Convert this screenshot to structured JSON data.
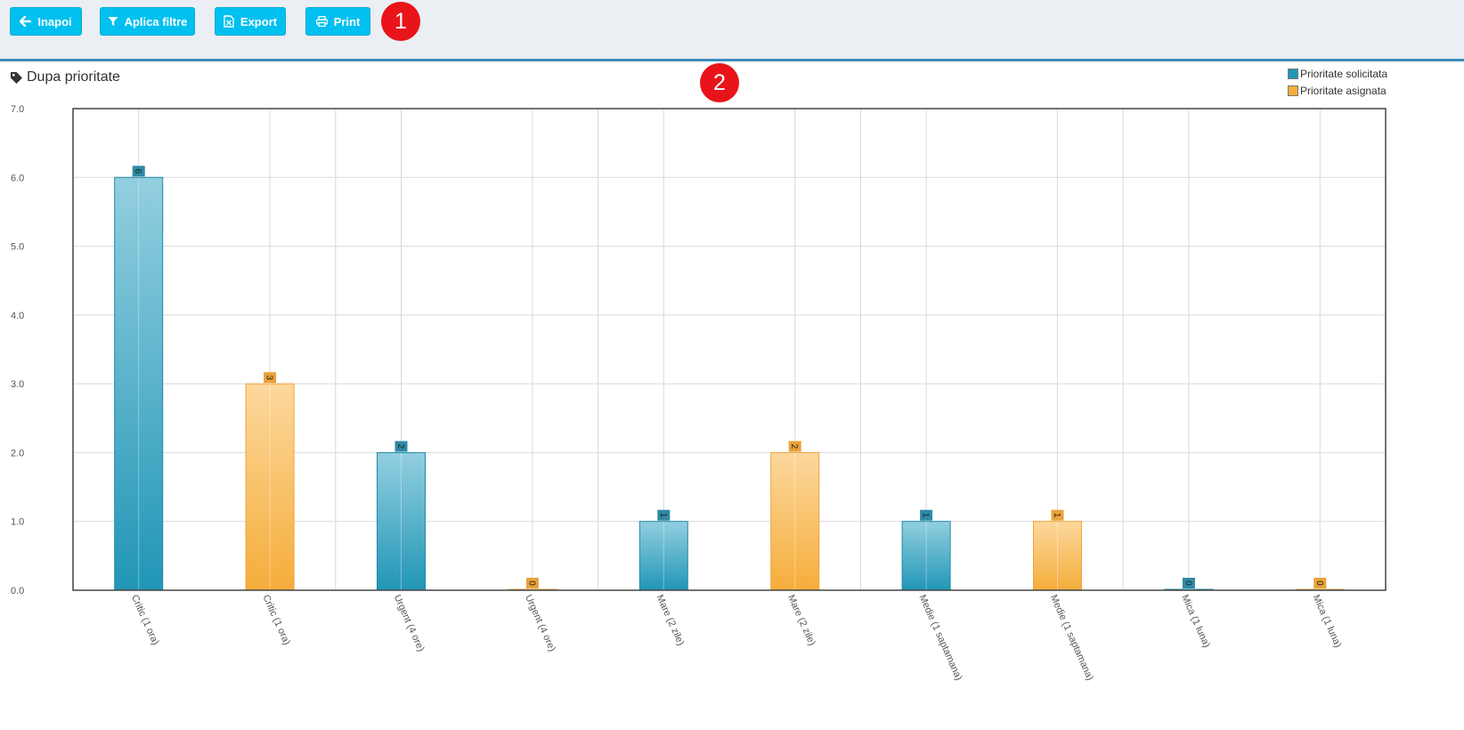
{
  "toolbar": {
    "back_label": "Inapoi",
    "filter_label": "Aplica filtre",
    "export_label": "Export",
    "print_label": "Print",
    "marker_1": "1"
  },
  "panel": {
    "title": "Dupa prioritate",
    "marker_2": "2",
    "icon": "tag-icon"
  },
  "colors": {
    "button": "#00c0ef",
    "series_requested": "#2196b6",
    "series_assigned": "#f5ad3b",
    "marker": "#e8141a"
  },
  "chart_data": {
    "type": "bar",
    "title": "",
    "xlabel": "",
    "ylabel": "",
    "ylim": [
      0,
      7
    ],
    "y_ticks": [
      "0.0",
      "1.0",
      "2.0",
      "3.0",
      "4.0",
      "5.0",
      "6.0",
      "7.0"
    ],
    "grid": true,
    "legend_position": "top-right",
    "categories": [
      "Critic (1 ora)",
      "Critic (1 ora)",
      "Urgent (4 ore)",
      "Urgent (4 ore)",
      "Mare (2 zile)",
      "Mare (2 zile)",
      "Medie (1 saptamana)",
      "Medie (1 saptamana)",
      "Mica (1 luna)",
      "Mica (1 luna)"
    ],
    "series": [
      {
        "name": "Prioritate solicitata",
        "color": "#2196b6",
        "values": [
          6,
          null,
          2,
          null,
          1,
          null,
          1,
          null,
          0,
          null
        ]
      },
      {
        "name": "Prioritate asignata",
        "color": "#f5ad3b",
        "values": [
          null,
          3,
          null,
          0,
          null,
          2,
          null,
          1,
          null,
          0
        ]
      }
    ]
  }
}
